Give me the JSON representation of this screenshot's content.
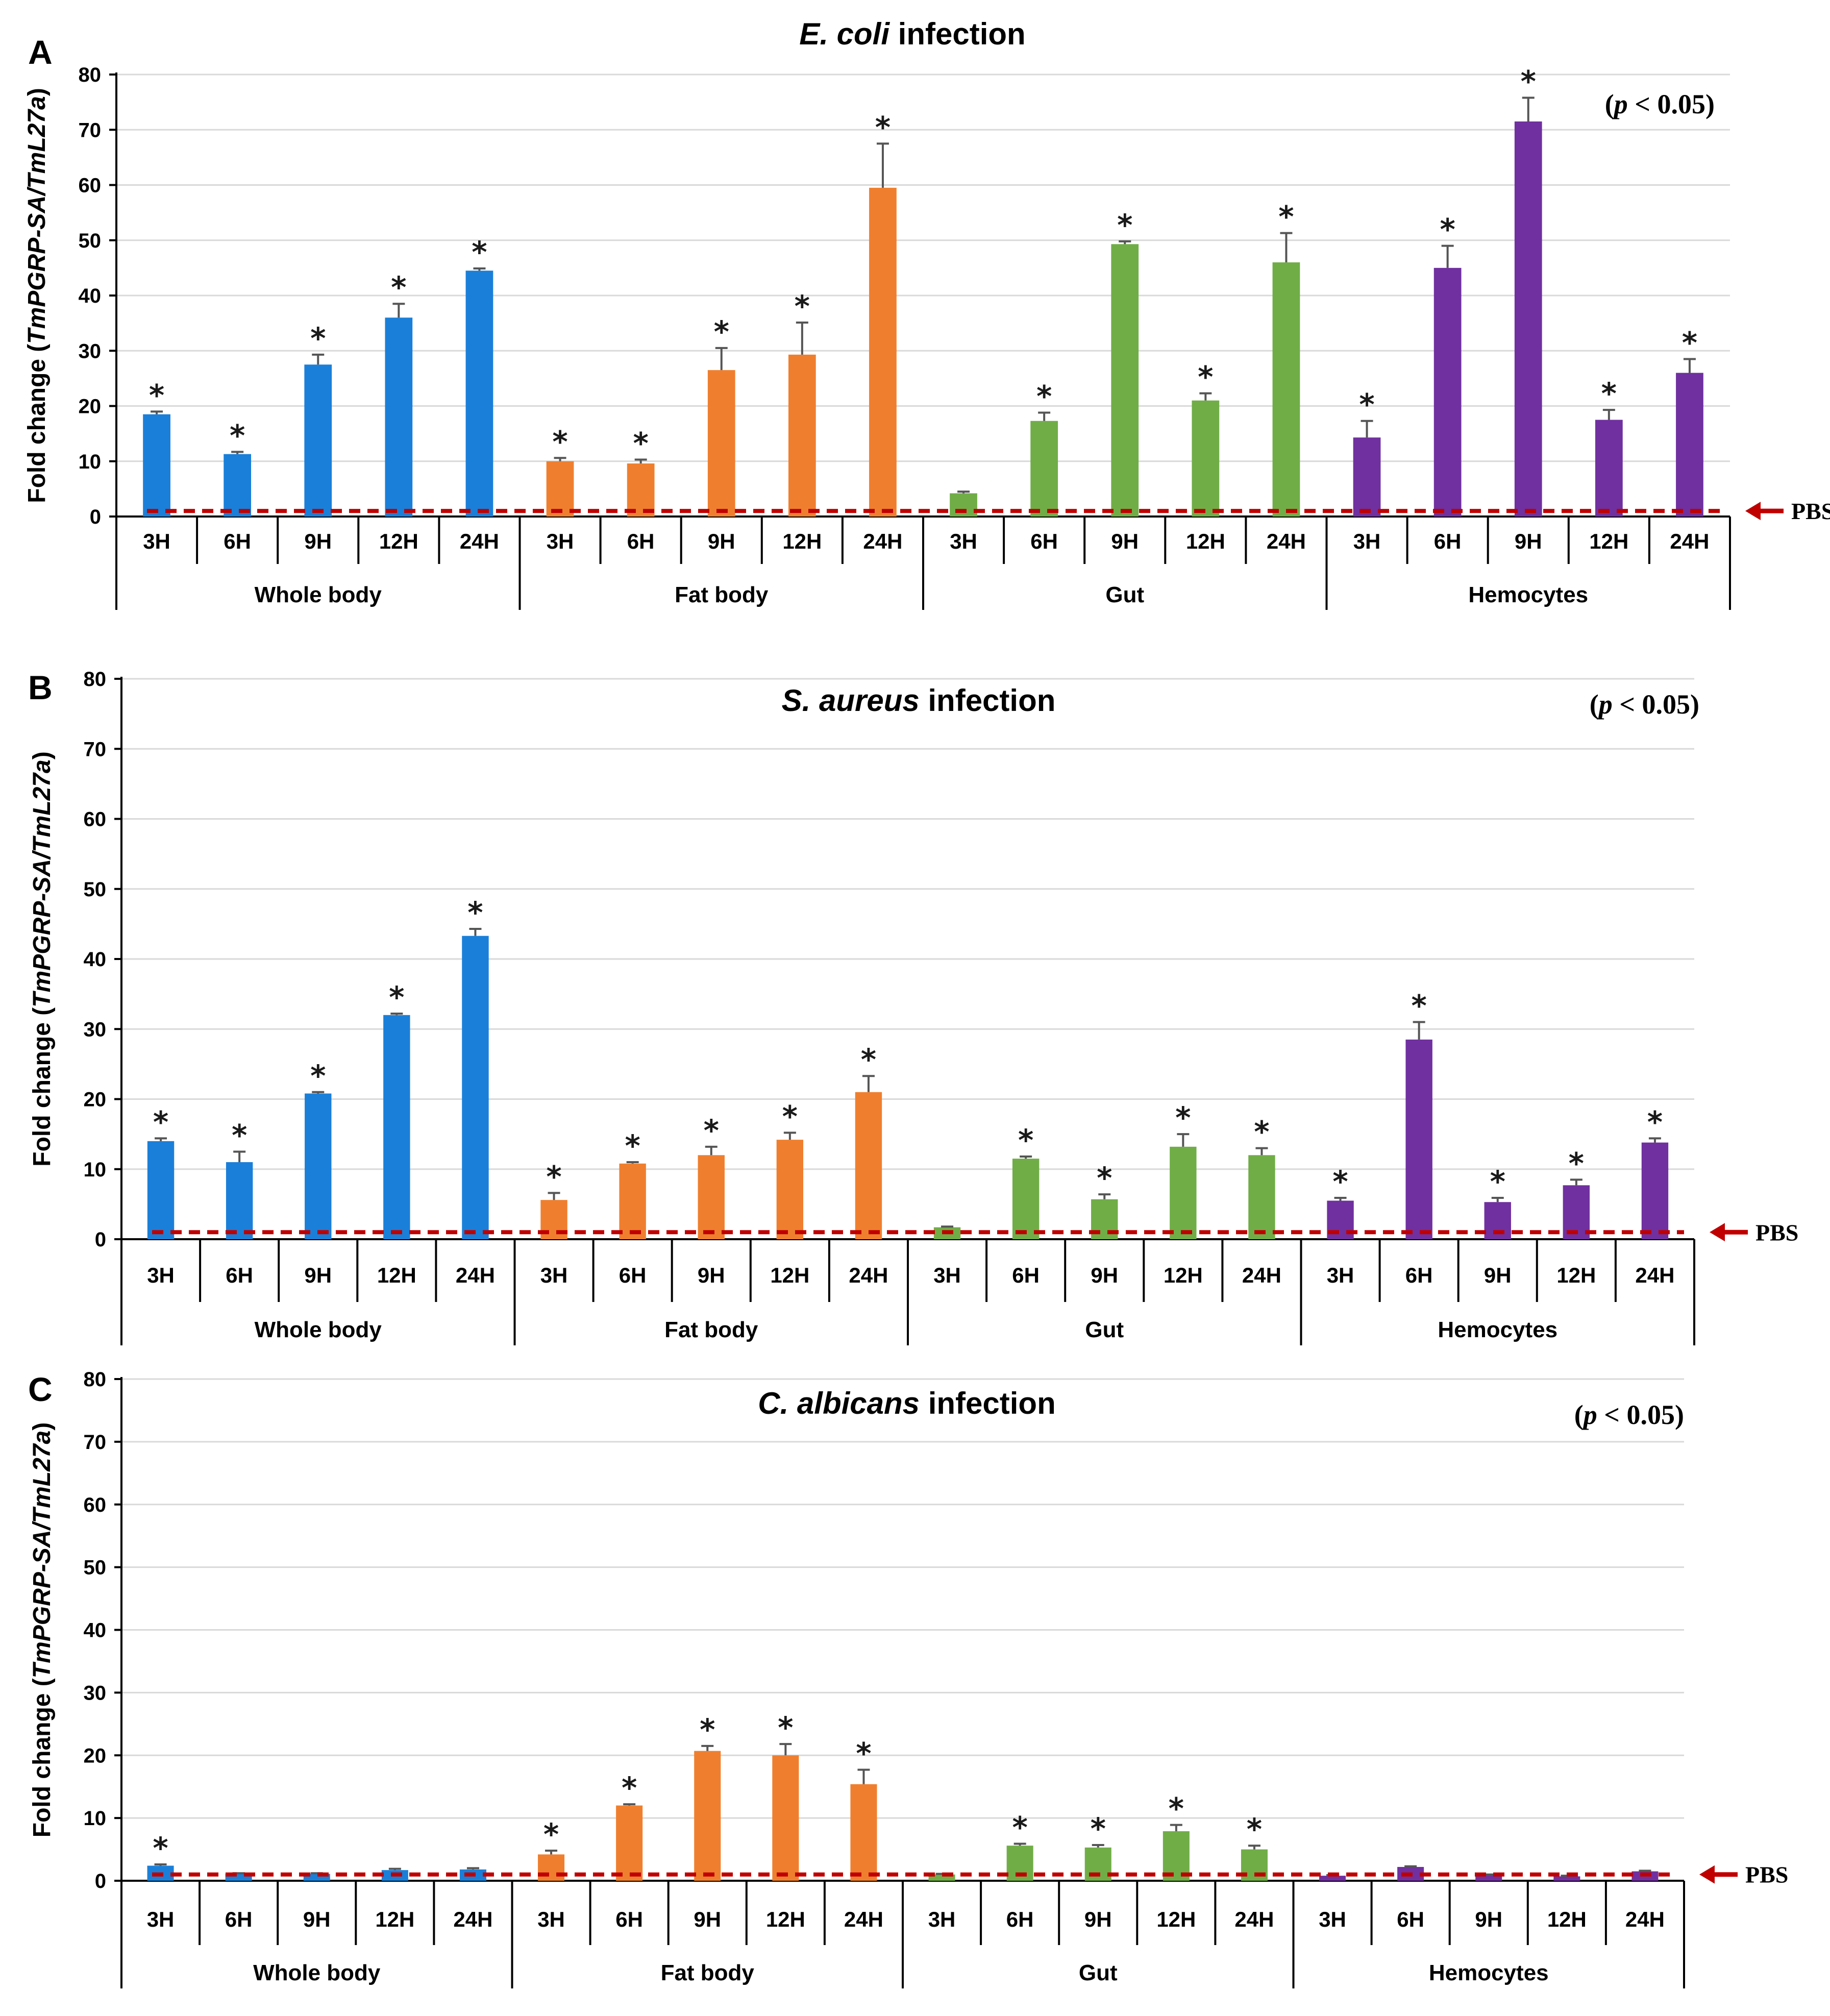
{
  "colors": {
    "Whole body": "#1a7fd9",
    "Fat body": "#ef7f2e",
    "Gut": "#70ad47",
    "Hemocytes": "#7030a0",
    "reference_line": "#c00000",
    "grid": "#d9d9d9",
    "error_bar": "#555555"
  },
  "chart_data": [
    {
      "type": "bar",
      "panel": "A",
      "title": {
        "italic": "E. coli",
        "rest": " infection"
      },
      "significance": {
        "open": "(",
        "p": "p",
        "rest": " < 0.05)"
      },
      "ylabel": {
        "pre": "Fold change (",
        "italic": "TmPGRP-SA/TmL27a",
        "post": ")"
      },
      "ylim": [
        0,
        80
      ],
      "yticks": [
        0,
        10,
        20,
        30,
        40,
        50,
        60,
        70,
        80
      ],
      "grid": true,
      "reference": {
        "label": "PBS",
        "value": 1
      },
      "groups": [
        {
          "name": "Whole body",
          "categories": [
            "3H",
            "6H",
            "9H",
            "12H",
            "24H"
          ],
          "values": [
            18.5,
            11.3,
            27.5,
            36.0,
            44.5
          ],
          "errors": [
            0.5,
            0.4,
            1.8,
            2.5,
            0.4
          ],
          "significant": [
            true,
            true,
            true,
            true,
            true
          ]
        },
        {
          "name": "Fat body",
          "categories": [
            "3H",
            "6H",
            "9H",
            "12H",
            "24H"
          ],
          "values": [
            10.0,
            9.6,
            26.5,
            29.3,
            59.5
          ],
          "errors": [
            0.6,
            0.7,
            4.0,
            5.8,
            8.0
          ],
          "significant": [
            true,
            true,
            true,
            true,
            true
          ]
        },
        {
          "name": "Gut",
          "categories": [
            "3H",
            "6H",
            "9H",
            "12H",
            "24H"
          ],
          "values": [
            4.2,
            17.3,
            49.3,
            21.0,
            46.0
          ],
          "errors": [
            0.3,
            1.5,
            0.5,
            1.3,
            5.3
          ],
          "significant": [
            false,
            true,
            true,
            true,
            true
          ]
        },
        {
          "name": "Hemocytes",
          "categories": [
            "3H",
            "6H",
            "9H",
            "12H",
            "24H"
          ],
          "values": [
            14.3,
            45.0,
            71.5,
            17.5,
            26.0
          ],
          "errors": [
            3.0,
            4.0,
            4.3,
            1.8,
            2.5
          ],
          "significant": [
            true,
            true,
            true,
            true,
            true
          ]
        }
      ]
    },
    {
      "type": "bar",
      "panel": "B",
      "title": {
        "italic": "S. aureus",
        "rest": " infection"
      },
      "significance": {
        "open": "(",
        "p": "p",
        "rest": " < 0.05)"
      },
      "ylabel": {
        "pre": "Fold change (",
        "italic": "TmPGRP-SA/TmL27a",
        "post": ")"
      },
      "ylim": [
        0,
        80
      ],
      "yticks": [
        0,
        10,
        20,
        30,
        40,
        50,
        60,
        70,
        80
      ],
      "grid": true,
      "reference": {
        "label": "PBS",
        "value": 1
      },
      "groups": [
        {
          "name": "Whole body",
          "categories": [
            "3H",
            "6H",
            "9H",
            "12H",
            "24H"
          ],
          "values": [
            14.0,
            11.0,
            20.8,
            32.0,
            43.3
          ],
          "errors": [
            0.4,
            1.5,
            0.2,
            0.2,
            1.0
          ],
          "significant": [
            true,
            true,
            true,
            true,
            true
          ]
        },
        {
          "name": "Fat body",
          "categories": [
            "3H",
            "6H",
            "9H",
            "12H",
            "24H"
          ],
          "values": [
            5.6,
            10.8,
            12.0,
            14.2,
            21.0
          ],
          "errors": [
            1.0,
            0.2,
            1.2,
            1.0,
            2.3
          ],
          "significant": [
            true,
            true,
            true,
            true,
            true
          ]
        },
        {
          "name": "Gut",
          "categories": [
            "3H",
            "6H",
            "9H",
            "12H",
            "24H"
          ],
          "values": [
            1.7,
            11.5,
            5.7,
            13.2,
            12.0
          ],
          "errors": [
            0.1,
            0.3,
            0.7,
            1.8,
            1.0
          ],
          "significant": [
            false,
            true,
            true,
            true,
            true
          ]
        },
        {
          "name": "Hemocytes",
          "categories": [
            "3H",
            "6H",
            "9H",
            "12H",
            "24H"
          ],
          "values": [
            5.5,
            28.5,
            5.3,
            7.7,
            13.8
          ],
          "errors": [
            0.4,
            2.5,
            0.6,
            0.8,
            0.6
          ],
          "significant": [
            true,
            true,
            true,
            true,
            true
          ]
        }
      ]
    },
    {
      "type": "bar",
      "panel": "C",
      "title": {
        "italic": "C. albicans",
        "rest": " infection"
      },
      "significance": {
        "open": "(",
        "p": "p",
        "rest": " < 0.05)"
      },
      "ylabel": {
        "pre": "Fold change (",
        "italic": "TmPGRP-SA/TmL27a",
        "post": ")"
      },
      "ylim": [
        0,
        80
      ],
      "yticks": [
        0,
        10,
        20,
        30,
        40,
        50,
        60,
        70,
        80
      ],
      "grid": true,
      "reference": {
        "label": "PBS",
        "value": 1
      },
      "groups": [
        {
          "name": "Whole body",
          "categories": [
            "3H",
            "6H",
            "9H",
            "12H",
            "24H"
          ],
          "values": [
            2.4,
            1.1,
            1.1,
            1.7,
            1.8
          ],
          "errors": [
            0.2,
            0.1,
            0.1,
            0.2,
            0.2
          ],
          "significant": [
            true,
            false,
            false,
            false,
            false
          ]
        },
        {
          "name": "Fat body",
          "categories": [
            "3H",
            "6H",
            "9H",
            "12H",
            "24H"
          ],
          "values": [
            4.2,
            12.0,
            20.7,
            20.0,
            15.4
          ],
          "errors": [
            0.6,
            0.2,
            0.8,
            1.8,
            2.3
          ],
          "significant": [
            true,
            true,
            true,
            true,
            true
          ]
        },
        {
          "name": "Gut",
          "categories": [
            "3H",
            "6H",
            "9H",
            "12H",
            "24H"
          ],
          "values": [
            1.0,
            5.6,
            5.3,
            7.9,
            5.0
          ],
          "errors": [
            0.1,
            0.3,
            0.4,
            1.0,
            0.6
          ],
          "significant": [
            false,
            true,
            true,
            true,
            true
          ]
        },
        {
          "name": "Hemocytes",
          "categories": [
            "3H",
            "6H",
            "9H",
            "12H",
            "24H"
          ],
          "values": [
            0.8,
            2.2,
            0.9,
            0.7,
            1.5
          ],
          "errors": [
            0.1,
            0.1,
            0.1,
            0.1,
            0.1
          ],
          "significant": [
            false,
            false,
            false,
            false,
            false
          ]
        }
      ]
    }
  ]
}
